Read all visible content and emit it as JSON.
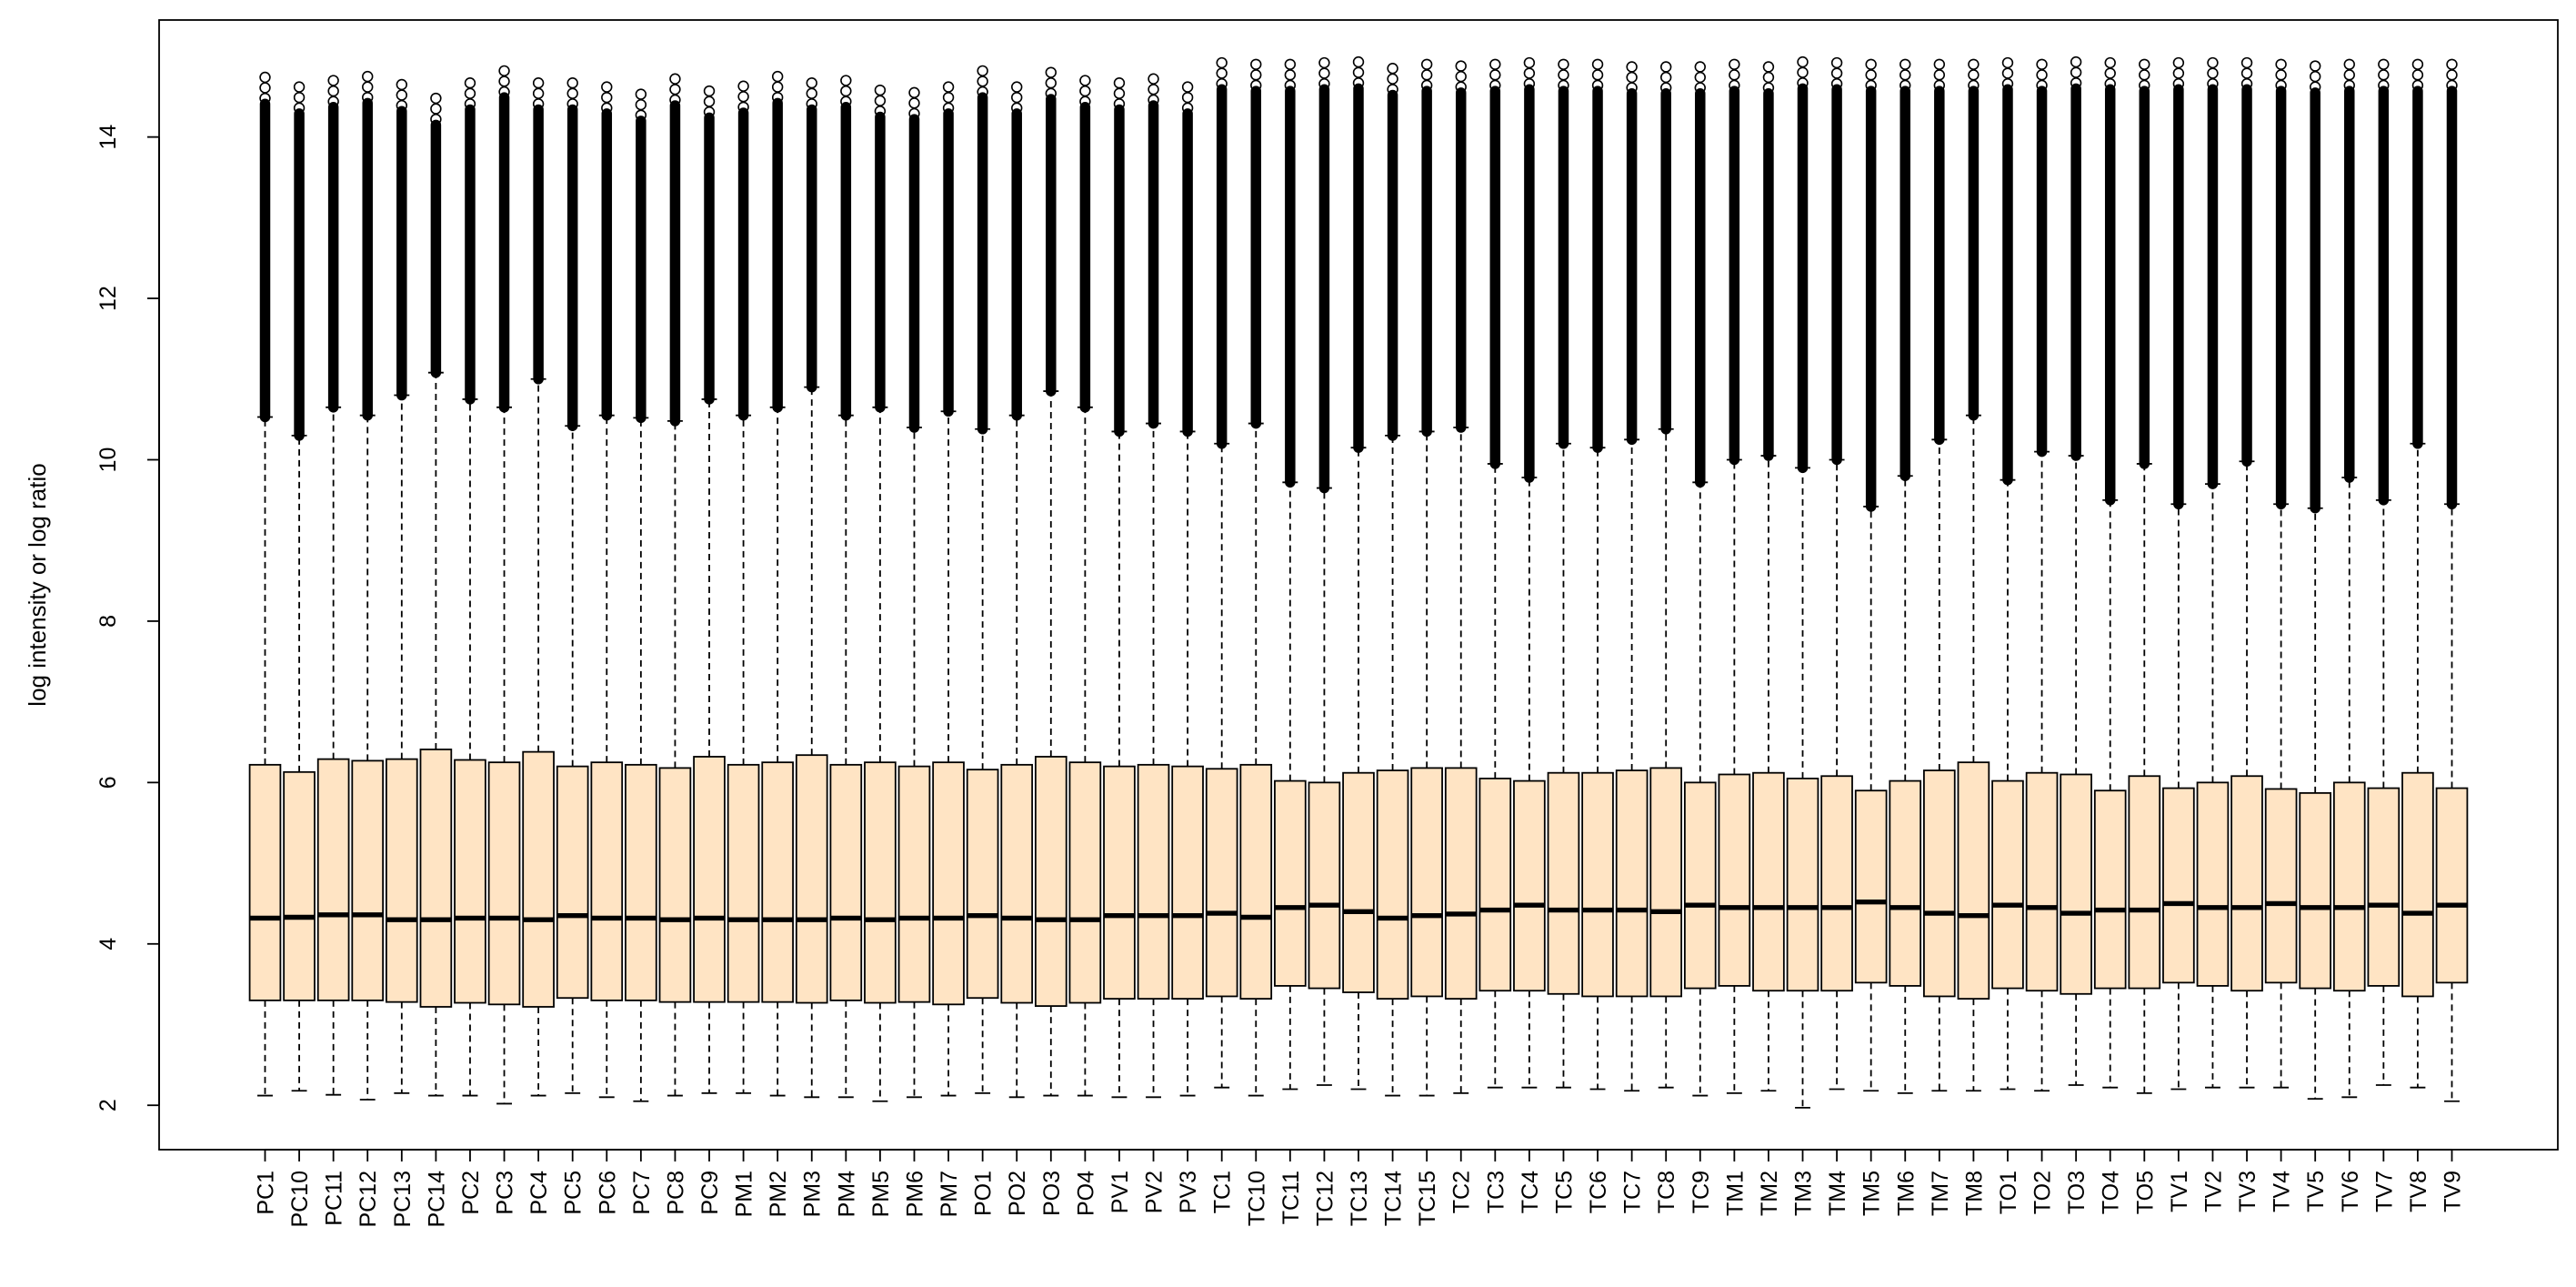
{
  "chart_data": {
    "type": "boxplot",
    "title": "",
    "xlabel": "",
    "ylabel": "log intensity or log ratio",
    "ylim": [
      1.45,
      15.45
    ],
    "yticks": [
      2,
      4,
      6,
      8,
      10,
      12,
      14
    ],
    "grid": false,
    "legend": "none",
    "colors": {
      "box_fill": "#FFE4C4",
      "line": "#000000"
    },
    "boxes": [
      {
        "label": "PC1",
        "whisker_low": 2.12,
        "q1": 3.3,
        "median": 4.32,
        "q3": 6.22,
        "whisker_high": 10.53,
        "outlier_max": 14.74
      },
      {
        "label": "PC10",
        "whisker_low": 2.18,
        "q1": 3.3,
        "median": 4.33,
        "q3": 6.13,
        "whisker_high": 10.3,
        "outlier_max": 14.62
      },
      {
        "label": "PC11",
        "whisker_low": 2.13,
        "q1": 3.3,
        "median": 4.36,
        "q3": 6.29,
        "whisker_high": 10.65,
        "outlier_max": 14.7
      },
      {
        "label": "PC12",
        "whisker_low": 2.07,
        "q1": 3.3,
        "median": 4.36,
        "q3": 6.27,
        "whisker_high": 10.55,
        "outlier_max": 14.75
      },
      {
        "label": "PC13",
        "whisker_low": 2.15,
        "q1": 3.28,
        "median": 4.3,
        "q3": 6.29,
        "whisker_high": 10.8,
        "outlier_max": 14.65
      },
      {
        "label": "PC14",
        "whisker_low": 2.12,
        "q1": 3.22,
        "median": 4.3,
        "q3": 6.41,
        "whisker_high": 11.08,
        "outlier_max": 14.48
      },
      {
        "label": "PC2",
        "whisker_low": 2.12,
        "q1": 3.27,
        "median": 4.32,
        "q3": 6.28,
        "whisker_high": 10.75,
        "outlier_max": 14.67
      },
      {
        "label": "PC3",
        "whisker_low": 2.02,
        "q1": 3.25,
        "median": 4.32,
        "q3": 6.25,
        "whisker_high": 10.65,
        "outlier_max": 14.82
      },
      {
        "label": "PC4",
        "whisker_low": 2.12,
        "q1": 3.22,
        "median": 4.3,
        "q3": 6.38,
        "whisker_high": 11.0,
        "outlier_max": 14.67
      },
      {
        "label": "PC5",
        "whisker_low": 2.15,
        "q1": 3.33,
        "median": 4.35,
        "q3": 6.2,
        "whisker_high": 10.42,
        "outlier_max": 14.67
      },
      {
        "label": "PC6",
        "whisker_low": 2.1,
        "q1": 3.3,
        "median": 4.32,
        "q3": 6.25,
        "whisker_high": 10.55,
        "outlier_max": 14.62
      },
      {
        "label": "PC7",
        "whisker_low": 2.05,
        "q1": 3.3,
        "median": 4.32,
        "q3": 6.22,
        "whisker_high": 10.52,
        "outlier_max": 14.53
      },
      {
        "label": "PC8",
        "whisker_low": 2.12,
        "q1": 3.28,
        "median": 4.3,
        "q3": 6.18,
        "whisker_high": 10.48,
        "outlier_max": 14.72
      },
      {
        "label": "PC9",
        "whisker_low": 2.15,
        "q1": 3.28,
        "median": 4.32,
        "q3": 6.32,
        "whisker_high": 10.75,
        "outlier_max": 14.57
      },
      {
        "label": "PM1",
        "whisker_low": 2.15,
        "q1": 3.28,
        "median": 4.3,
        "q3": 6.22,
        "whisker_high": 10.55,
        "outlier_max": 14.63
      },
      {
        "label": "PM2",
        "whisker_low": 2.12,
        "q1": 3.28,
        "median": 4.3,
        "q3": 6.25,
        "whisker_high": 10.65,
        "outlier_max": 14.75
      },
      {
        "label": "PM3",
        "whisker_low": 2.1,
        "q1": 3.27,
        "median": 4.3,
        "q3": 6.34,
        "whisker_high": 10.9,
        "outlier_max": 14.67
      },
      {
        "label": "PM4",
        "whisker_low": 2.1,
        "q1": 3.3,
        "median": 4.32,
        "q3": 6.22,
        "whisker_high": 10.55,
        "outlier_max": 14.7
      },
      {
        "label": "PM5",
        "whisker_low": 2.05,
        "q1": 3.27,
        "median": 4.3,
        "q3": 6.25,
        "whisker_high": 10.65,
        "outlier_max": 14.58
      },
      {
        "label": "PM6",
        "whisker_low": 2.1,
        "q1": 3.28,
        "median": 4.32,
        "q3": 6.2,
        "whisker_high": 10.4,
        "outlier_max": 14.55
      },
      {
        "label": "PM7",
        "whisker_low": 2.12,
        "q1": 3.25,
        "median": 4.32,
        "q3": 6.25,
        "whisker_high": 10.6,
        "outlier_max": 14.62
      },
      {
        "label": "PO1",
        "whisker_low": 2.15,
        "q1": 3.33,
        "median": 4.35,
        "q3": 6.16,
        "whisker_high": 10.38,
        "outlier_max": 14.82
      },
      {
        "label": "PO2",
        "whisker_low": 2.1,
        "q1": 3.27,
        "median": 4.32,
        "q3": 6.22,
        "whisker_high": 10.55,
        "outlier_max": 14.62
      },
      {
        "label": "PO3",
        "whisker_low": 2.12,
        "q1": 3.23,
        "median": 4.3,
        "q3": 6.32,
        "whisker_high": 10.85,
        "outlier_max": 14.8
      },
      {
        "label": "PO4",
        "whisker_low": 2.12,
        "q1": 3.27,
        "median": 4.3,
        "q3": 6.25,
        "whisker_high": 10.65,
        "outlier_max": 14.7
      },
      {
        "label": "PV1",
        "whisker_low": 2.1,
        "q1": 3.32,
        "median": 4.35,
        "q3": 6.2,
        "whisker_high": 10.35,
        "outlier_max": 14.67
      },
      {
        "label": "PV2",
        "whisker_low": 2.1,
        "q1": 3.32,
        "median": 4.35,
        "q3": 6.22,
        "whisker_high": 10.45,
        "outlier_max": 14.72
      },
      {
        "label": "PV3",
        "whisker_low": 2.12,
        "q1": 3.32,
        "median": 4.35,
        "q3": 6.2,
        "whisker_high": 10.35,
        "outlier_max": 14.62
      },
      {
        "label": "TC1",
        "whisker_low": 2.22,
        "q1": 3.35,
        "median": 4.38,
        "q3": 6.17,
        "whisker_high": 10.2,
        "outlier_max": 14.92
      },
      {
        "label": "TC10",
        "whisker_low": 2.12,
        "q1": 3.32,
        "median": 4.33,
        "q3": 6.22,
        "whisker_high": 10.45,
        "outlier_max": 14.9
      },
      {
        "label": "TC11",
        "whisker_low": 2.2,
        "q1": 3.48,
        "median": 4.45,
        "q3": 6.02,
        "whisker_high": 9.72,
        "outlier_max": 14.9
      },
      {
        "label": "TC12",
        "whisker_low": 2.25,
        "q1": 3.45,
        "median": 4.48,
        "q3": 6.0,
        "whisker_high": 9.65,
        "outlier_max": 14.92
      },
      {
        "label": "TC13",
        "whisker_low": 2.2,
        "q1": 3.4,
        "median": 4.4,
        "q3": 6.12,
        "whisker_high": 10.15,
        "outlier_max": 14.93
      },
      {
        "label": "TC14",
        "whisker_low": 2.12,
        "q1": 3.32,
        "median": 4.32,
        "q3": 6.15,
        "whisker_high": 10.3,
        "outlier_max": 14.85
      },
      {
        "label": "TC15",
        "whisker_low": 2.12,
        "q1": 3.35,
        "median": 4.35,
        "q3": 6.18,
        "whisker_high": 10.35,
        "outlier_max": 14.9
      },
      {
        "label": "TC2",
        "whisker_low": 2.15,
        "q1": 3.32,
        "median": 4.37,
        "q3": 6.18,
        "whisker_high": 10.4,
        "outlier_max": 14.88
      },
      {
        "label": "TC3",
        "whisker_low": 2.22,
        "q1": 3.42,
        "median": 4.42,
        "q3": 6.05,
        "whisker_high": 9.95,
        "outlier_max": 14.9
      },
      {
        "label": "TC4",
        "whisker_low": 2.22,
        "q1": 3.42,
        "median": 4.48,
        "q3": 6.02,
        "whisker_high": 9.78,
        "outlier_max": 14.92
      },
      {
        "label": "TC5",
        "whisker_low": 2.22,
        "q1": 3.38,
        "median": 4.42,
        "q3": 6.12,
        "whisker_high": 10.2,
        "outlier_max": 14.9
      },
      {
        "label": "TC6",
        "whisker_low": 2.2,
        "q1": 3.35,
        "median": 4.42,
        "q3": 6.12,
        "whisker_high": 10.15,
        "outlier_max": 14.9
      },
      {
        "label": "TC7",
        "whisker_low": 2.18,
        "q1": 3.35,
        "median": 4.42,
        "q3": 6.15,
        "whisker_high": 10.25,
        "outlier_max": 14.87
      },
      {
        "label": "TC8",
        "whisker_low": 2.22,
        "q1": 3.35,
        "median": 4.4,
        "q3": 6.18,
        "whisker_high": 10.38,
        "outlier_max": 14.87
      },
      {
        "label": "TC9",
        "whisker_low": 2.12,
        "q1": 3.45,
        "median": 4.48,
        "q3": 6.0,
        "whisker_high": 9.72,
        "outlier_max": 14.87
      },
      {
        "label": "TM1",
        "whisker_low": 2.15,
        "q1": 3.48,
        "median": 4.45,
        "q3": 6.1,
        "whisker_high": 10.0,
        "outlier_max": 14.9
      },
      {
        "label": "TM2",
        "whisker_low": 2.18,
        "q1": 3.42,
        "median": 4.45,
        "q3": 6.12,
        "whisker_high": 10.05,
        "outlier_max": 14.87
      },
      {
        "label": "TM3",
        "whisker_low": 1.97,
        "q1": 3.42,
        "median": 4.45,
        "q3": 6.05,
        "whisker_high": 9.9,
        "outlier_max": 14.93
      },
      {
        "label": "TM4",
        "whisker_low": 2.2,
        "q1": 3.42,
        "median": 4.45,
        "q3": 6.08,
        "whisker_high": 10.0,
        "outlier_max": 14.92
      },
      {
        "label": "TM5",
        "whisker_low": 2.18,
        "q1": 3.52,
        "median": 4.52,
        "q3": 5.9,
        "whisker_high": 9.42,
        "outlier_max": 14.9
      },
      {
        "label": "TM6",
        "whisker_low": 2.15,
        "q1": 3.48,
        "median": 4.45,
        "q3": 6.02,
        "whisker_high": 9.8,
        "outlier_max": 14.9
      },
      {
        "label": "TM7",
        "whisker_low": 2.18,
        "q1": 3.35,
        "median": 4.38,
        "q3": 6.15,
        "whisker_high": 10.25,
        "outlier_max": 14.9
      },
      {
        "label": "TM8",
        "whisker_low": 2.18,
        "q1": 3.32,
        "median": 4.35,
        "q3": 6.25,
        "whisker_high": 10.55,
        "outlier_max": 14.9
      },
      {
        "label": "TO1",
        "whisker_low": 2.2,
        "q1": 3.45,
        "median": 4.48,
        "q3": 6.02,
        "whisker_high": 9.75,
        "outlier_max": 14.92
      },
      {
        "label": "TO2",
        "whisker_low": 2.18,
        "q1": 3.42,
        "median": 4.45,
        "q3": 6.12,
        "whisker_high": 10.1,
        "outlier_max": 14.9
      },
      {
        "label": "TO3",
        "whisker_low": 2.25,
        "q1": 3.38,
        "median": 4.38,
        "q3": 6.1,
        "whisker_high": 10.05,
        "outlier_max": 14.93
      },
      {
        "label": "TO4",
        "whisker_low": 2.22,
        "q1": 3.45,
        "median": 4.42,
        "q3": 5.9,
        "whisker_high": 9.5,
        "outlier_max": 14.92
      },
      {
        "label": "TO5",
        "whisker_low": 2.15,
        "q1": 3.45,
        "median": 4.42,
        "q3": 6.08,
        "whisker_high": 9.95,
        "outlier_max": 14.9
      },
      {
        "label": "TV1",
        "whisker_low": 2.2,
        "q1": 3.52,
        "median": 4.5,
        "q3": 5.93,
        "whisker_high": 9.45,
        "outlier_max": 14.92
      },
      {
        "label": "TV2",
        "whisker_low": 2.22,
        "q1": 3.48,
        "median": 4.45,
        "q3": 6.0,
        "whisker_high": 9.7,
        "outlier_max": 14.92
      },
      {
        "label": "TV3",
        "whisker_low": 2.22,
        "q1": 3.42,
        "median": 4.45,
        "q3": 6.08,
        "whisker_high": 9.98,
        "outlier_max": 14.92
      },
      {
        "label": "TV4",
        "whisker_low": 2.22,
        "q1": 3.52,
        "median": 4.5,
        "q3": 5.92,
        "whisker_high": 9.45,
        "outlier_max": 14.9
      },
      {
        "label": "TV5",
        "whisker_low": 2.08,
        "q1": 3.45,
        "median": 4.45,
        "q3": 5.87,
        "whisker_high": 9.4,
        "outlier_max": 14.88
      },
      {
        "label": "TV6",
        "whisker_low": 2.1,
        "q1": 3.42,
        "median": 4.45,
        "q3": 6.0,
        "whisker_high": 9.78,
        "outlier_max": 14.9
      },
      {
        "label": "TV7",
        "whisker_low": 2.25,
        "q1": 3.48,
        "median": 4.48,
        "q3": 5.93,
        "whisker_high": 9.5,
        "outlier_max": 14.9
      },
      {
        "label": "TV8",
        "whisker_low": 2.22,
        "q1": 3.35,
        "median": 4.38,
        "q3": 6.12,
        "whisker_high": 10.2,
        "outlier_max": 14.9
      },
      {
        "label": "TV9",
        "whisker_low": 2.05,
        "q1": 3.52,
        "median": 4.48,
        "q3": 5.93,
        "whisker_high": 9.45,
        "outlier_max": 14.9
      }
    ]
  }
}
